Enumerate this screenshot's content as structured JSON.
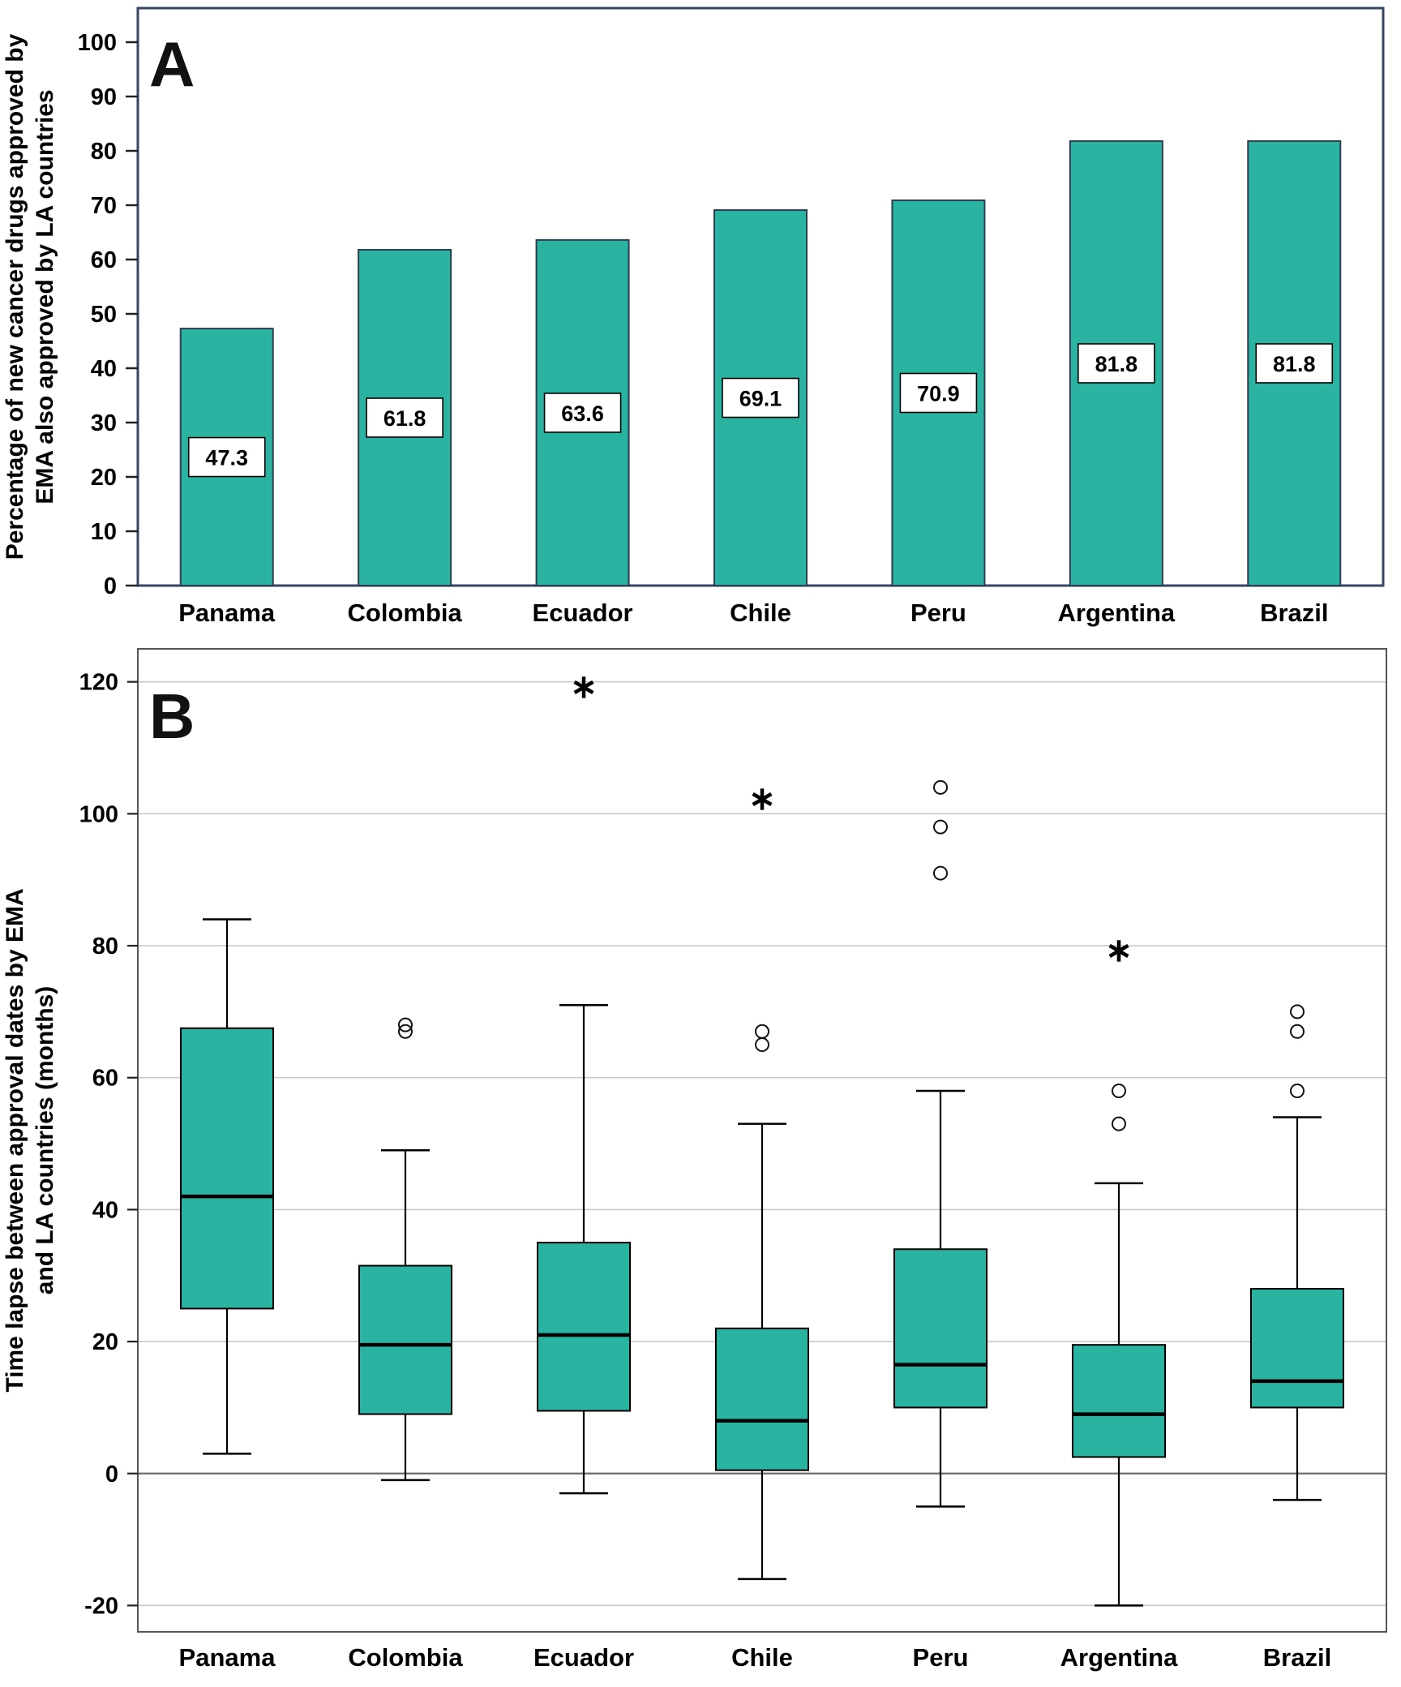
{
  "figure": {
    "panel_a_label": "A",
    "panel_b_label": "B"
  },
  "chart_data": [
    {
      "panel": "A",
      "type": "bar",
      "ylabel": "Percentage of new cancer drugs approved by EMA also approved by LA countries",
      "ylabel_lines": [
        "Percentage of new cancer drugs approved by",
        "EMA also approved by LA countries"
      ],
      "categories": [
        "Panama",
        "Colombia",
        "Ecuador",
        "Chile",
        "Peru",
        "Argentina",
        "Brazil"
      ],
      "values": [
        47.3,
        61.8,
        63.6,
        69.1,
        70.9,
        81.8,
        81.8
      ],
      "data_labels": [
        "47.3",
        "61.8",
        "63.6",
        "69.1",
        "70.9",
        "81.8",
        "81.8"
      ],
      "ylim": [
        0,
        100
      ],
      "yticks": [
        0,
        10,
        20,
        30,
        40,
        50,
        60,
        70,
        80,
        90,
        100
      ],
      "grid": "off",
      "legend": "none",
      "bar_color": "#2bb3a2",
      "bar_border": "#2e3d4f",
      "frame_color": "#364562"
    },
    {
      "panel": "B",
      "type": "boxplot",
      "ylabel": "Time lapse between approval dates by EMA and LA countries (months)",
      "ylabel_lines": [
        "Time lapse between approval dates by EMA",
        "and LA countries (months)"
      ],
      "categories": [
        "Panama",
        "Colombia",
        "Ecuador",
        "Chile",
        "Peru",
        "Argentina",
        "Brazil"
      ],
      "boxes": [
        {
          "category": "Panama",
          "whisker_low": 3,
          "q1": 25,
          "median": 42,
          "q3": 67.5,
          "whisker_high": 84,
          "outliers": [],
          "extremes": []
        },
        {
          "category": "Colombia",
          "whisker_low": -1,
          "q1": 9,
          "median": 19.5,
          "q3": 31.5,
          "whisker_high": 49,
          "outliers": [
            67,
            68
          ],
          "extremes": []
        },
        {
          "category": "Ecuador",
          "whisker_low": -3,
          "q1": 9.5,
          "median": 21,
          "q3": 35,
          "whisker_high": 71,
          "outliers": [],
          "extremes": [
            119
          ]
        },
        {
          "category": "Chile",
          "whisker_low": -16,
          "q1": 0.5,
          "median": 8,
          "q3": 22,
          "whisker_high": 53,
          "outliers": [
            65,
            67
          ],
          "extremes": [
            102
          ]
        },
        {
          "category": "Peru",
          "whisker_low": -5,
          "q1": 10,
          "median": 16.5,
          "q3": 34,
          "whisker_high": 58,
          "outliers": [
            91,
            98,
            104
          ],
          "extremes": []
        },
        {
          "category": "Argentina",
          "whisker_low": -20,
          "q1": 2.5,
          "median": 9,
          "q3": 19.5,
          "whisker_high": 44,
          "outliers": [
            53,
            58
          ],
          "extremes": [
            79
          ]
        },
        {
          "category": "Brazil",
          "whisker_low": -4,
          "q1": 10,
          "median": 14,
          "q3": 28,
          "whisker_high": 54,
          "outliers": [
            58,
            67,
            70
          ],
          "extremes": []
        }
      ],
      "ylim": [
        -24,
        125
      ],
      "yticks": [
        -20,
        0,
        20,
        40,
        60,
        80,
        100,
        120
      ],
      "grid": "horizontal",
      "legend": "none",
      "zero_line": 0,
      "box_color": "#2bb3a2",
      "box_border": "#000000",
      "grid_color": "#c9c9c9",
      "frame_color": "#555555"
    }
  ]
}
